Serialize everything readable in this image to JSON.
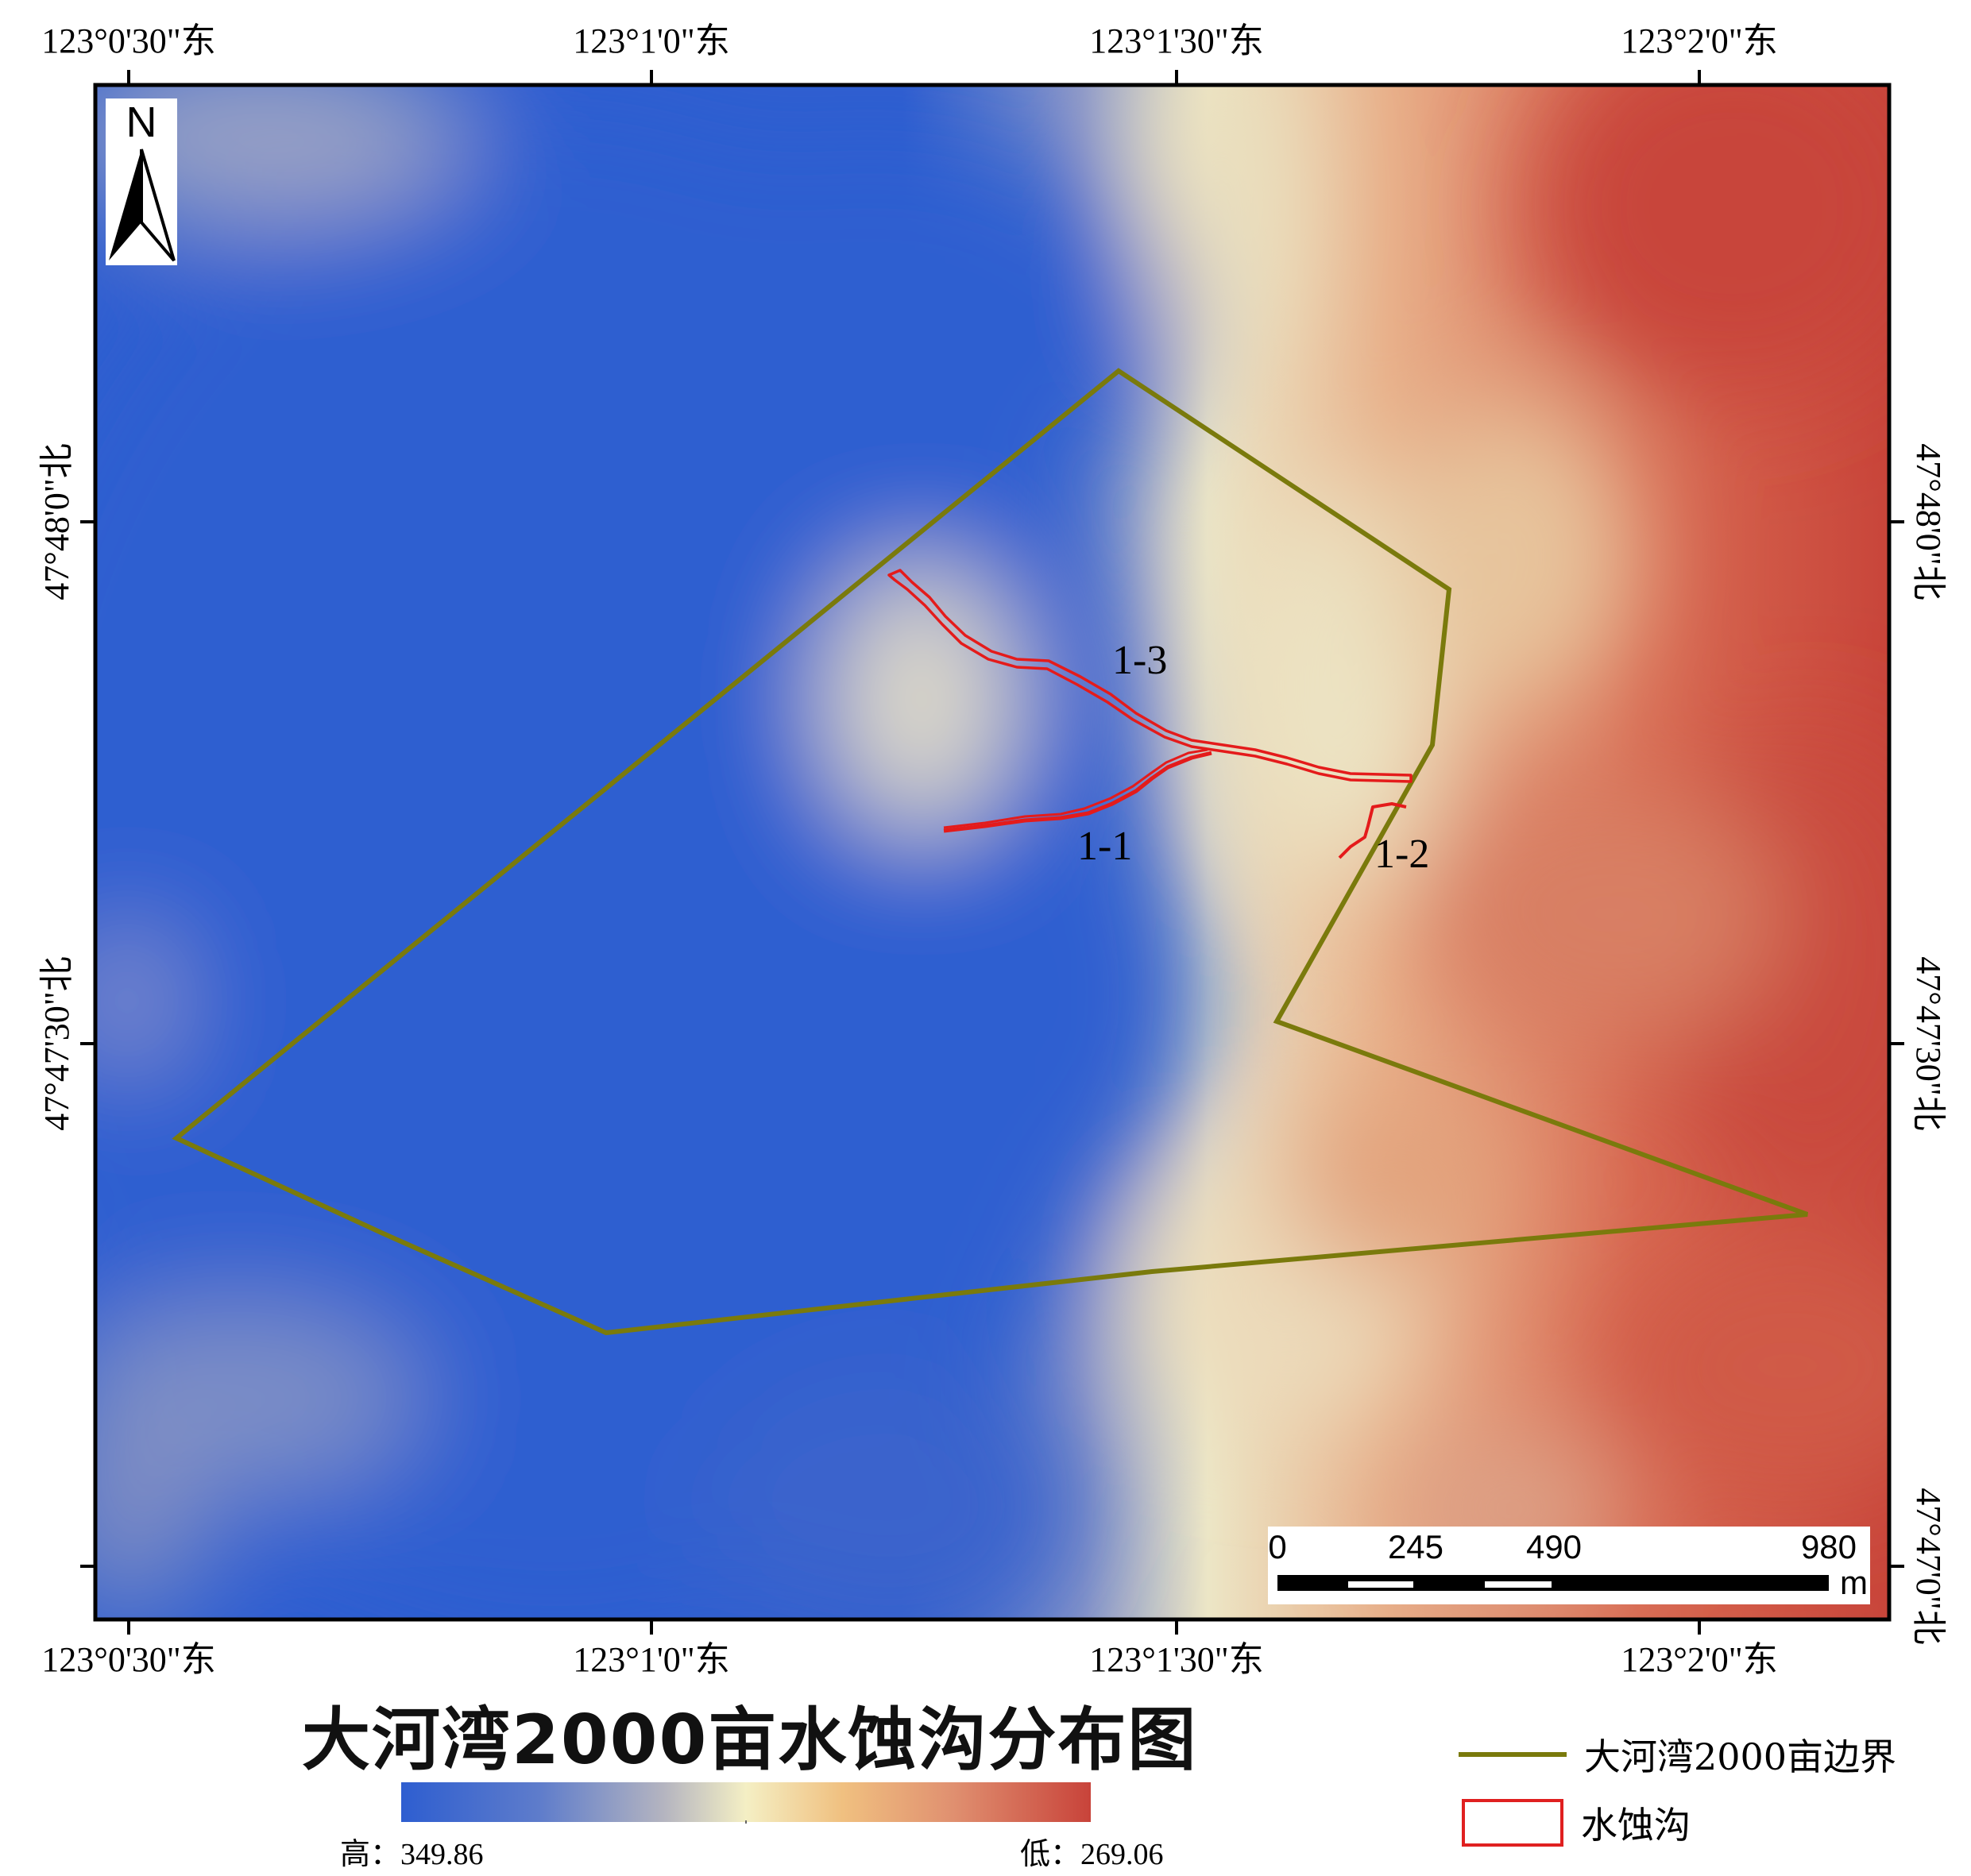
{
  "title": "大河湾2000亩水蚀沟分布图",
  "graticule": {
    "top_lon_labels": [
      "123°0'30\"东",
      "123°1'0\"东",
      "123°1'30\"东",
      "123°2'0\"东"
    ],
    "bottom_lon_labels": [
      "123°0'30\"东",
      "123°1'0\"东",
      "123°1'30\"东",
      "123°2'0\"东"
    ],
    "left_lat_labels": [
      "47°48'0\"北",
      "47°47'30\"北"
    ],
    "right_lat_labels": [
      "47°48'0\"北",
      "47°47'30\"北",
      "47°47'0\"北"
    ]
  },
  "north_arrow": {
    "label": "N"
  },
  "gullies": [
    "1-1",
    "1-2",
    "1-3"
  ],
  "scale_bar": {
    "labels": [
      "0",
      "245",
      "490",
      "980"
    ],
    "unit": "m"
  },
  "elevation_legend": {
    "high_label": "高：349.86",
    "low_label": "低：269.06",
    "colors": [
      "#2e5ed0",
      "#f4efc4",
      "#c8433a"
    ]
  },
  "legend": {
    "boundary_label": "大河湾2000亩边界",
    "gully_label": "水蚀沟",
    "boundary_color": "#7a7a0c",
    "gully_color": "#e02020"
  }
}
